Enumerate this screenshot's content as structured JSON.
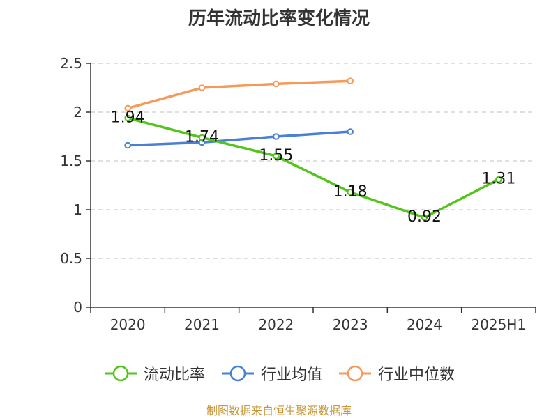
{
  "title": "历年流动比率变化情况",
  "source_note": "制图数据来自恒生聚源数据库",
  "chart_data": {
    "type": "line",
    "title": "历年流动比率变化情况",
    "categories": [
      "2020",
      "2021",
      "2022",
      "2023",
      "2024",
      "2025H1"
    ],
    "ylim": [
      0,
      2.5
    ],
    "yticks": [
      "0",
      "0.5",
      "1",
      "1.5",
      "2",
      "2.5"
    ],
    "grid": true,
    "legend_position": "bottom",
    "series": [
      {
        "name": "流动比率",
        "color": "#52c41a",
        "values": [
          1.94,
          1.74,
          1.55,
          1.18,
          0.92,
          1.31
        ],
        "labels": [
          "1.94",
          "1.74",
          "1.55",
          "1.18",
          "0.92",
          "1.31"
        ],
        "show_labels": true
      },
      {
        "name": "行业均值",
        "color": "#4a7fd6",
        "values": [
          1.66,
          1.69,
          1.75,
          1.8,
          null,
          null
        ],
        "show_labels": false
      },
      {
        "name": "行业中位数",
        "color": "#f59a5a",
        "values": [
          2.04,
          2.25,
          2.29,
          2.32,
          null,
          null
        ],
        "show_labels": false
      }
    ]
  }
}
